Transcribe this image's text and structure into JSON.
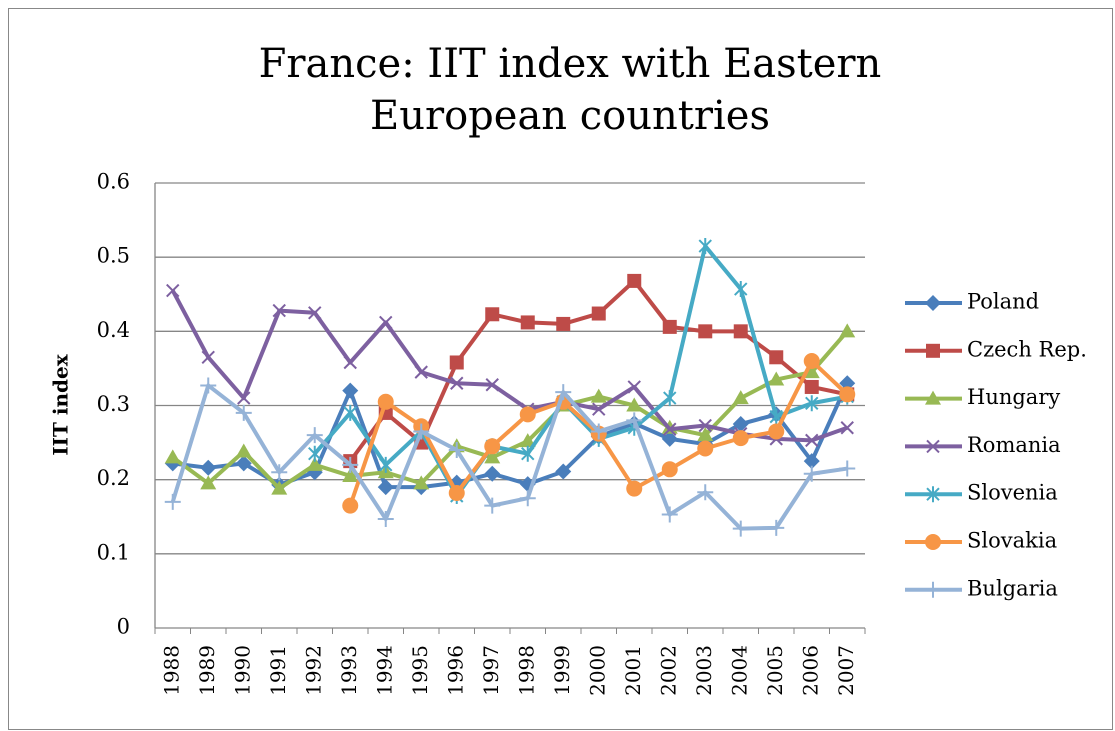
{
  "chart_data": {
    "type": "line",
    "title": "France: IIT index with Eastern European countries",
    "y_label": "IIT index",
    "categories": [
      "1988",
      "1989",
      "1990",
      "1991",
      "1992",
      "1993",
      "1994",
      "1995",
      "1996",
      "1997",
      "1998",
      "1999",
      "2000",
      "2001",
      "2002",
      "2003",
      "2004",
      "2005",
      "2006",
      "2007"
    ],
    "ylim": [
      0,
      0.6
    ],
    "yticks": [
      0,
      0.1,
      0.2,
      0.3,
      0.4,
      0.5,
      0.6
    ],
    "grid": true,
    "legend": "right",
    "series": [
      {
        "name": "Poland",
        "color": "#4a7ebb",
        "marker": "diamond",
        "values": [
          0.222,
          0.216,
          0.222,
          0.193,
          0.21,
          0.32,
          0.19,
          0.19,
          0.196,
          0.208,
          0.194,
          0.211,
          0.258,
          0.276,
          0.255,
          0.248,
          0.275,
          0.288,
          0.225,
          0.33
        ]
      },
      {
        "name": "Czech Rep.",
        "color": "#be4b48",
        "marker": "square",
        "values": [
          null,
          null,
          null,
          null,
          null,
          0.225,
          0.29,
          0.25,
          0.358,
          0.423,
          0.412,
          0.41,
          0.424,
          0.468,
          0.406,
          0.4,
          0.4,
          0.365,
          0.325,
          0.315
        ]
      },
      {
        "name": "Hungary",
        "color": "#98b954",
        "marker": "triangle",
        "values": [
          0.23,
          0.195,
          0.238,
          0.188,
          0.22,
          0.205,
          0.21,
          0.195,
          0.245,
          0.23,
          0.252,
          0.3,
          0.312,
          0.3,
          0.27,
          0.26,
          0.31,
          0.335,
          0.345,
          0.4
        ]
      },
      {
        "name": "Romania",
        "color": "#7d60a0",
        "marker": "x",
        "values": [
          0.455,
          0.365,
          0.31,
          0.428,
          0.425,
          0.358,
          0.412,
          0.345,
          0.33,
          0.328,
          0.295,
          0.305,
          0.295,
          0.325,
          0.268,
          0.273,
          0.262,
          0.255,
          0.253,
          0.27
        ]
      },
      {
        "name": "Slovenia",
        "color": "#46aac5",
        "marker": "star",
        "values": [
          null,
          null,
          null,
          null,
          0.235,
          0.29,
          0.22,
          0.265,
          0.178,
          0.245,
          0.235,
          0.305,
          0.255,
          0.27,
          0.31,
          0.515,
          0.457,
          0.285,
          0.303,
          0.312
        ]
      },
      {
        "name": "Slovakia",
        "color": "#f79646",
        "marker": "circle",
        "values": [
          null,
          null,
          null,
          null,
          null,
          0.165,
          0.305,
          0.272,
          0.182,
          0.245,
          0.288,
          0.305,
          0.262,
          0.188,
          0.214,
          0.242,
          0.256,
          0.265,
          0.36,
          0.315
        ]
      },
      {
        "name": "Bulgaria",
        "color": "#95b3d7",
        "marker": "plus",
        "values": [
          0.17,
          0.327,
          0.29,
          0.21,
          0.26,
          0.22,
          0.147,
          0.265,
          0.24,
          0.165,
          0.175,
          0.318,
          0.265,
          0.28,
          0.153,
          0.183,
          0.134,
          0.135,
          0.208,
          0.215
        ]
      }
    ]
  }
}
